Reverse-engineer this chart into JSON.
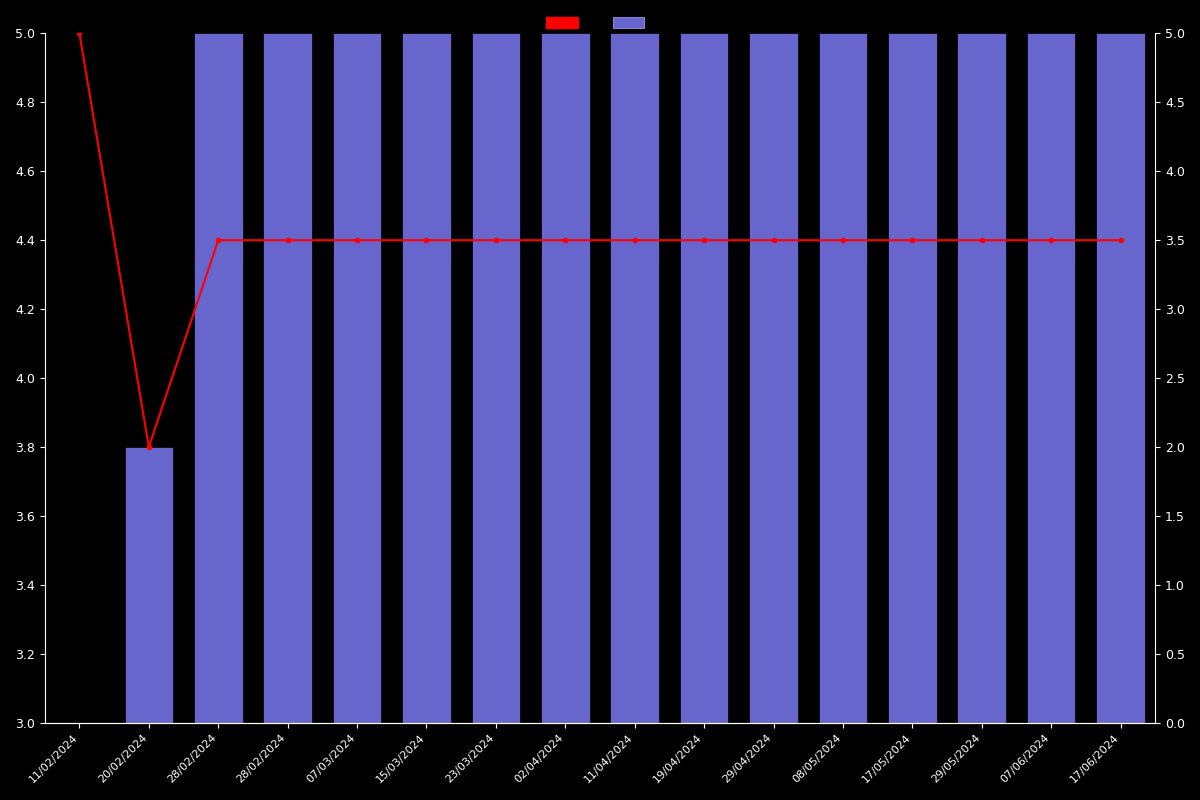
{
  "background_color": "#000000",
  "bar_color": "#6666cc",
  "line_color": "#ff0000",
  "bar_edge_color": "#000000",
  "categories": [
    "11/02/2024",
    "20/02/2024",
    "28/02/2024",
    "28/02/2024",
    "07/03/2024",
    "15/03/2024",
    "23/03/2024",
    "02/04/2024",
    "11/04/2024",
    "19/04/2024",
    "29/04/2024",
    "08/05/2024",
    "17/05/2024",
    "29/05/2024",
    "07/06/2024",
    "17/06/2024"
  ],
  "bar_heights": [
    0,
    3.8,
    5.0,
    5.0,
    5.0,
    5.0,
    5.0,
    5.0,
    5.0,
    5.0,
    5.0,
    5.0,
    5.0,
    5.0,
    5.0,
    5.0
  ],
  "line_values": [
    5.0,
    3.8,
    4.4,
    4.4,
    4.4,
    4.4,
    4.4,
    4.4,
    4.4,
    4.4,
    4.4,
    4.4,
    4.4,
    4.4,
    4.4,
    4.4
  ],
  "ylim_left": [
    3.0,
    5.0
  ],
  "ylim_right": [
    0,
    5.0
  ],
  "yticks_left": [
    3.0,
    3.2,
    3.4,
    3.6,
    3.8,
    4.0,
    4.2,
    4.4,
    4.6,
    4.8,
    5.0
  ],
  "yticks_right": [
    0,
    0.5,
    1.0,
    1.5,
    2.0,
    2.5,
    3.0,
    3.5,
    4.0,
    4.5,
    5.0
  ],
  "tick_color": "#ffffff",
  "grid_color": "#333333",
  "legend_label_line": "",
  "legend_label_bar": "",
  "text_color": "#ffffff"
}
